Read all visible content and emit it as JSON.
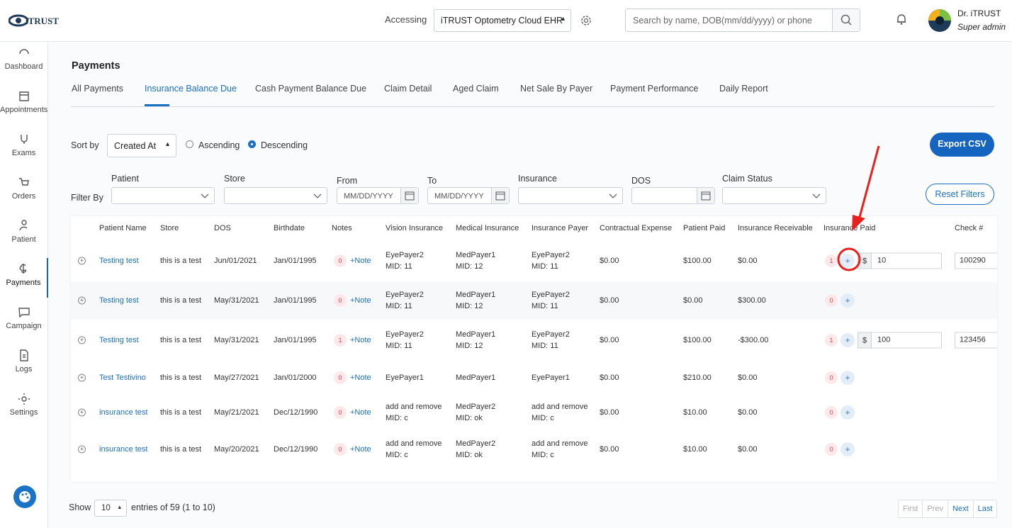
{
  "header": {
    "logo": "iTRUST",
    "accessing_label": "Accessing",
    "practice": "iTRUST Optometry Cloud EHR",
    "search_placeholder": "Search by name, DOB(mm/dd/yyyy) or phone",
    "user_name": "Dr. iTRUST",
    "user_role": "Super admin"
  },
  "sidebar": {
    "items": [
      {
        "label": "Dashboard"
      },
      {
        "label": "Appointments"
      },
      {
        "label": "Exams"
      },
      {
        "label": "Orders"
      },
      {
        "label": "Patient"
      },
      {
        "label": "Payments",
        "active": true
      },
      {
        "label": "Campaign"
      },
      {
        "label": "Logs"
      },
      {
        "label": "Settings"
      }
    ]
  },
  "page": {
    "title": "Payments",
    "tabs": [
      {
        "label": "All Payments"
      },
      {
        "label": "Insurance Balance Due",
        "active": true
      },
      {
        "label": "Cash Payment Balance Due"
      },
      {
        "label": "Claim Detail"
      },
      {
        "label": "Aged Claim"
      },
      {
        "label": "Net Sale By Payer"
      },
      {
        "label": "Payment Performance"
      },
      {
        "label": "Daily Report"
      }
    ]
  },
  "controls": {
    "sort_label": "Sort by",
    "sort_value": "Created At",
    "order": [
      {
        "label": "Ascending",
        "checked": false
      },
      {
        "label": "Descending",
        "checked": true
      }
    ],
    "export": "Export CSV"
  },
  "filters": {
    "label": "Filter By",
    "fields": [
      {
        "label": "Patient",
        "kind": "select"
      },
      {
        "label": "Store",
        "kind": "select"
      },
      {
        "label": "From",
        "kind": "date",
        "placeholder": "MM/DD/YYYY"
      },
      {
        "label": "To",
        "kind": "date",
        "placeholder": "MM/DD/YYYY"
      },
      {
        "label": "Insurance",
        "kind": "select"
      },
      {
        "label": "DOS",
        "kind": "date"
      },
      {
        "label": "Claim Status",
        "kind": "select"
      }
    ],
    "reset": "Reset Filters"
  },
  "table": {
    "columns": [
      "Patient Name",
      "Store",
      "DOS",
      "Birthdate",
      "Notes",
      "Vision Insurance",
      "Medical Insurance",
      "Insurance Payer",
      "Contractual Expense",
      "Patient Paid",
      "Insurance Receivable",
      "Insurance Paid",
      "Check #"
    ],
    "rows": [
      {
        "patient": "Testing test",
        "store": "this is a test",
        "dos": "Jun/01/2021",
        "birthdate": "Jan/01/1995",
        "notes_count": "0",
        "note_action": "+Note",
        "vision": [
          "EyePayer2",
          "MID: 11"
        ],
        "medical": [
          "MedPayer1",
          "MID: 12"
        ],
        "payer": [
          "EyePayer2",
          "MID: 11"
        ],
        "contractual": "$0.00",
        "patient_paid": "$100.00",
        "receivable": "$0.00",
        "paid_count": "1",
        "paid_currency": "$",
        "paid_amount": "10",
        "check": "100290"
      },
      {
        "patient": "Testing test",
        "store": "this is a test",
        "dos": "May/31/2021",
        "birthdate": "Jan/01/1995",
        "notes_count": "0",
        "note_action": "+Note",
        "vision": [
          "EyePayer2",
          "MID: 11"
        ],
        "medical": [
          "MedPayer1",
          "MID: 12"
        ],
        "payer": [
          "EyePayer2",
          "MID: 11"
        ],
        "contractual": "$0.00",
        "patient_paid": "$0.00",
        "receivable": "$300.00",
        "paid_count": "0"
      },
      {
        "patient": "Testing test",
        "store": "this is a test",
        "dos": "May/31/2021",
        "birthdate": "Jan/01/1995",
        "notes_count": "1",
        "note_action": "+Note",
        "vision": [
          "EyePayer2",
          "MID: 11"
        ],
        "medical": [
          "MedPayer1",
          "MID: 12"
        ],
        "payer": [
          "EyePayer2",
          "MID: 11"
        ],
        "contractual": "$0.00",
        "patient_paid": "$100.00",
        "receivable": "-$300.00",
        "paid_count": "1",
        "paid_currency": "$",
        "paid_amount": "100",
        "check": "123456"
      },
      {
        "patient": "Test Testivino",
        "store": "this is a test",
        "dos": "May/27/2021",
        "birthdate": "Jan/01/2000",
        "notes_count": "0",
        "note_action": "+Note",
        "vision": [
          "EyePayer1"
        ],
        "medical": [
          "MedPayer1"
        ],
        "payer": [
          "EyePayer1"
        ],
        "contractual": "$0.00",
        "patient_paid": "$210.00",
        "receivable": "$0.00",
        "paid_count": "0"
      },
      {
        "patient": "insurance test",
        "store": "this is a test",
        "dos": "May/21/2021",
        "birthdate": "Dec/12/1990",
        "notes_count": "0",
        "note_action": "+Note",
        "vision": [
          "add and remove",
          "MID: c"
        ],
        "medical": [
          "MedPayer2",
          "MID: ok"
        ],
        "payer": [
          "add and remove",
          "MID: c"
        ],
        "contractual": "$0.00",
        "patient_paid": "$10.00",
        "receivable": "$0.00",
        "paid_count": "0"
      },
      {
        "patient": "insurance test",
        "store": "this is a test",
        "dos": "May/20/2021",
        "birthdate": "Dec/12/1990",
        "notes_count": "0",
        "note_action": "+Note",
        "vision": [
          "add and remove",
          "MID: c"
        ],
        "medical": [
          "MedPayer2",
          "MID: ok"
        ],
        "payer": [
          "add and remove",
          "MID: c"
        ],
        "contractual": "$0.00",
        "patient_paid": "$10.00",
        "receivable": "$0.00",
        "paid_count": "0"
      }
    ]
  },
  "footer": {
    "show": "Show",
    "page_size": "10",
    "entries": "entries of 59 (1 to 10)",
    "pagination": [
      {
        "label": "First",
        "enabled": false
      },
      {
        "label": "Prev",
        "enabled": false
      },
      {
        "label": "Next",
        "enabled": true
      },
      {
        "label": "Last",
        "enabled": true
      }
    ]
  }
}
